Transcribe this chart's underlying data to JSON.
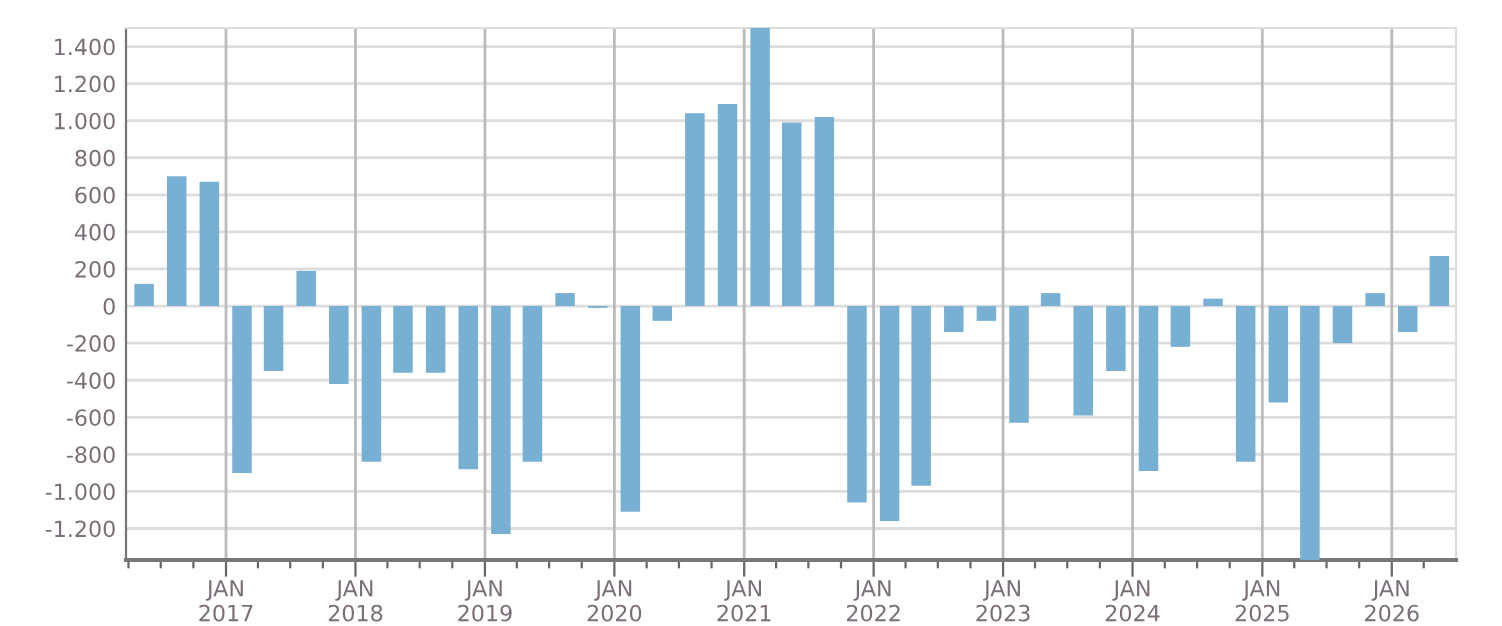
{
  "chart_data": {
    "type": "bar",
    "x": [
      "2016-05-15",
      "2016-08-15",
      "2016-11-15",
      "2017-02-15",
      "2017-05-15",
      "2017-08-15",
      "2017-11-15",
      "2018-02-15",
      "2018-05-15",
      "2018-08-15",
      "2018-11-15",
      "2019-02-15",
      "2019-05-15",
      "2019-08-15",
      "2019-11-15",
      "2020-02-15",
      "2020-05-15",
      "2020-08-15",
      "2020-11-15",
      "2021-02-15",
      "2021-05-15",
      "2021-08-15",
      "2021-11-15",
      "2022-02-15",
      "2022-05-15",
      "2022-08-15",
      "2022-11-15",
      "2023-02-15",
      "2023-05-15",
      "2023-08-15",
      "2023-11-15",
      "2024-02-15",
      "2024-05-15",
      "2024-08-15",
      "2024-11-15",
      "2025-02-15",
      "2025-05-15",
      "2025-08-15",
      "2025-11-15",
      "2026-02-15",
      "2026-05-15"
    ],
    "values": [
      120,
      700,
      670,
      -900,
      -350,
      190,
      -420,
      -840,
      -360,
      -360,
      -880,
      -1230,
      -840,
      70,
      -10,
      -1110,
      -80,
      1040,
      1090,
      1500,
      990,
      1020,
      -1060,
      -1160,
      -970,
      -140,
      -80,
      -630,
      70,
      -590,
      -350,
      -890,
      -220,
      40,
      -840,
      -520,
      -1370,
      -200,
      70,
      -140,
      270
    ],
    "color": "#78b0d3",
    "xlim": [
      "2016-03-25",
      "2026-07-01"
    ],
    "ylim": [
      -1370,
      1500
    ],
    "xticks": [
      {
        "value": "2016-04-01",
        "label": null
      },
      {
        "value": "2016-07-01",
        "label": null
      },
      {
        "value": "2016-10-01",
        "label": null
      },
      {
        "value": "2017-01-01",
        "label": "JAN\n2017"
      },
      {
        "value": "2017-04-01",
        "label": null
      },
      {
        "value": "2017-07-01",
        "label": null
      },
      {
        "value": "2017-10-01",
        "label": null
      },
      {
        "value": "2018-01-01",
        "label": "JAN\n2018"
      },
      {
        "value": "2018-04-01",
        "label": null
      },
      {
        "value": "2018-07-01",
        "label": null
      },
      {
        "value": "2018-10-01",
        "label": null
      },
      {
        "value": "2019-01-01",
        "label": "JAN\n2019"
      },
      {
        "value": "2019-04-01",
        "label": null
      },
      {
        "value": "2019-07-01",
        "label": null
      },
      {
        "value": "2019-10-01",
        "label": null
      },
      {
        "value": "2020-01-01",
        "label": "JAN\n2020"
      },
      {
        "value": "2020-04-01",
        "label": null
      },
      {
        "value": "2020-07-01",
        "label": null
      },
      {
        "value": "2020-10-01",
        "label": null
      },
      {
        "value": "2021-01-01",
        "label": "JAN\n2021"
      },
      {
        "value": "2021-04-01",
        "label": null
      },
      {
        "value": "2021-07-01",
        "label": null
      },
      {
        "value": "2021-10-01",
        "label": null
      },
      {
        "value": "2022-01-01",
        "label": "JAN\n2022"
      },
      {
        "value": "2022-04-01",
        "label": null
      },
      {
        "value": "2022-07-01",
        "label": null
      },
      {
        "value": "2022-10-01",
        "label": null
      },
      {
        "value": "2023-01-01",
        "label": "JAN\n2023"
      },
      {
        "value": "2023-04-01",
        "label": null
      },
      {
        "value": "2023-07-01",
        "label": null
      },
      {
        "value": "2023-10-01",
        "label": null
      },
      {
        "value": "2024-01-01",
        "label": "JAN\n2024"
      },
      {
        "value": "2024-04-01",
        "label": null
      },
      {
        "value": "2024-07-01",
        "label": null
      },
      {
        "value": "2024-10-01",
        "label": null
      },
      {
        "value": "2025-01-01",
        "label": "JAN\n2025"
      },
      {
        "value": "2025-04-01",
        "label": null
      },
      {
        "value": "2025-07-01",
        "label": null
      },
      {
        "value": "2025-10-01",
        "label": null
      },
      {
        "value": "2026-01-01",
        "label": "JAN\n2026"
      },
      {
        "value": "2026-04-01",
        "label": null
      }
    ],
    "yticks": [
      {
        "value": -1200,
        "label": "-1.200"
      },
      {
        "value": -1000,
        "label": "-1.000"
      },
      {
        "value": -800,
        "label": "-800"
      },
      {
        "value": -600,
        "label": "-600"
      },
      {
        "value": -400,
        "label": "-400"
      },
      {
        "value": -200,
        "label": "-200"
      },
      {
        "value": 0,
        "label": "0"
      },
      {
        "value": 200,
        "label": "200"
      },
      {
        "value": 400,
        "label": "400"
      },
      {
        "value": 600,
        "label": "600"
      },
      {
        "value": 800,
        "label": "800"
      },
      {
        "value": 1000,
        "label": "1.000"
      },
      {
        "value": 1200,
        "label": "1.200"
      },
      {
        "value": 1400,
        "label": "1.400"
      }
    ],
    "grid": true
  }
}
